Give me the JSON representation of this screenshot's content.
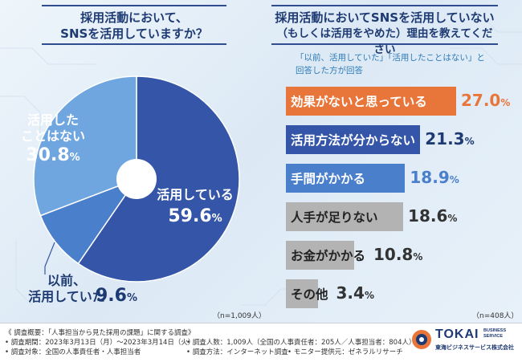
{
  "left_title": [
    "採用活動において、",
    "SNSを活用していますか？"
  ],
  "right_title": [
    "採用活動においてSNSを活用していない",
    "（もしくは活用をやめた）理由を教えてください"
  ],
  "right_note": [
    "「以前、活用していた」「活用したことはない」と",
    "回答した方が回答"
  ],
  "left_n": "（n=1,009人）",
  "right_n": "（n=408人）",
  "colors": {
    "dark": "#3556a8",
    "mid": "#4a7fcc",
    "light": "#6fa6e0",
    "orange": "#e8763a",
    "gray": "#b3b3b3"
  },
  "chart_data": [
    {
      "type": "pie",
      "title": "採用活動において、SNSを活用していますか？",
      "slices": [
        {
          "label": "活用している",
          "value": 59.6
        },
        {
          "label": "以前、活用していた",
          "value": 9.6
        },
        {
          "label": "活用したことはない",
          "value": 30.8
        }
      ],
      "slice_labels": [
        {
          "lines": [
            "活用している"
          ],
          "value": "59.6"
        },
        {
          "lines": [
            "以前、",
            "活用していた"
          ],
          "value": "9.6"
        },
        {
          "lines": [
            "活用した",
            "ことはない"
          ],
          "value": "30.8"
        }
      ],
      "unit": "%"
    },
    {
      "type": "bar",
      "orientation": "horizontal",
      "title": "採用活動においてSNSを活用していない（もしくは活用をやめた）理由を教えてください",
      "categories": [
        "効果がないと思っている",
        "活用方法が分からない",
        "手間がかかる",
        "人手が足りない",
        "お金がかかる",
        "その他"
      ],
      "values": [
        27.0,
        21.3,
        18.9,
        18.6,
        10.8,
        3.4
      ],
      "value_labels": [
        "27.0",
        "21.3",
        "18.9",
        "18.6",
        "10.8",
        "3.4"
      ],
      "unit": "%"
    }
  ],
  "footer": {
    "lines": [
      "《 調査概要：「人事担当から見た採用の課題」に関する調査》",
      "• 調査期間：2023年3月13日（月）～2023年3月14日（火）",
      "• 調査人数：1,009人（全国の人事責任者：205人／人事担当者：804人）",
      "• 調査対象：全国の人事責任者・人事担当者",
      "• 調査方法：インターネット調査",
      "• モニター提供元：ゼネラルリサーチ"
    ],
    "logo_main": "TOKAI",
    "logo_sub": [
      "BUSINESS",
      "SERVICE"
    ],
    "logo_company": "東海ビジネスサービス株式会社"
  }
}
